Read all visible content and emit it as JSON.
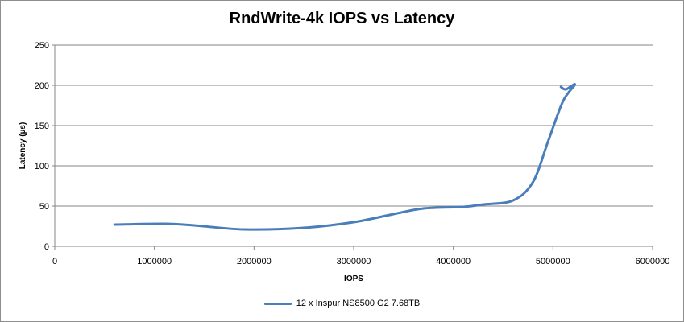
{
  "chart_data": {
    "type": "line",
    "title": "RndWrite-4k IOPS vs Latency",
    "xlabel": "IOPS",
    "ylabel": "Latency (µs)",
    "xlim": [
      0,
      6000000
    ],
    "ylim": [
      0,
      250
    ],
    "xticks": [
      0,
      1000000,
      2000000,
      3000000,
      4000000,
      5000000,
      6000000
    ],
    "yticks": [
      0,
      50,
      100,
      150,
      200,
      250
    ],
    "grid": "horizontal",
    "legend_position": "bottom",
    "series": [
      {
        "name": "12 x Inspur NS8500 G2 7.68TB",
        "color": "#4a7ebb",
        "x": [
          600000,
          1100000,
          1400000,
          1900000,
          2500000,
          3000000,
          3400000,
          3700000,
          4100000,
          4300000,
          4600000,
          4800000,
          4950000,
          5100000,
          5220000,
          5130000,
          5080000
        ],
        "y": [
          27,
          28,
          26,
          21,
          23,
          30,
          40,
          47,
          49,
          52,
          57,
          80,
          130,
          180,
          201,
          195,
          198
        ]
      }
    ]
  }
}
